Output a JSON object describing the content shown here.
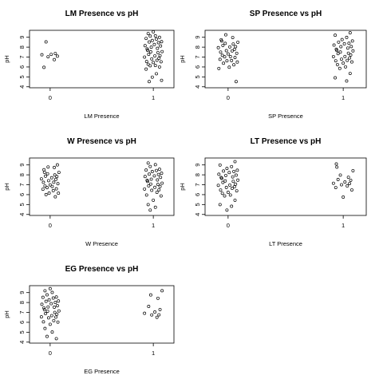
{
  "chart_data": [
    {
      "type": "scatter",
      "title": "LM Presence vs pH",
      "xlabel": "LM Presence",
      "ylabel": "pH",
      "xticks": [
        "0",
        "1"
      ],
      "yticks": [
        "4",
        "5",
        "6",
        "7",
        "8",
        "9"
      ],
      "xlim": [
        -0.2,
        1.2
      ],
      "ylim": [
        3.9,
        9.7
      ],
      "series": [
        {
          "x": 0,
          "y": [
            6.0,
            6.7,
            7.0,
            7.1,
            7.2,
            7.3,
            7.4,
            8.5
          ]
        },
        {
          "x": 1,
          "y": [
            4.5,
            4.7,
            5.0,
            5.3,
            5.8,
            6.0,
            6.1,
            6.2,
            6.3,
            6.4,
            6.5,
            6.6,
            6.7,
            6.8,
            6.9,
            7.0,
            7.1,
            7.2,
            7.3,
            7.4,
            7.5,
            7.6,
            7.7,
            7.8,
            7.9,
            8.0,
            8.1,
            8.2,
            8.3,
            8.4,
            8.5,
            8.6,
            8.7,
            8.8,
            8.9,
            9.0,
            9.1,
            9.2,
            9.4,
            9.5
          ]
        }
      ]
    },
    {
      "type": "scatter",
      "title": "SP Presence vs pH",
      "xlabel": "SP Presence",
      "ylabel": "pH",
      "xticks": [
        "0",
        "1"
      ],
      "yticks": [
        "4",
        "5",
        "6",
        "7",
        "8",
        "9"
      ],
      "xlim": [
        -0.2,
        1.2
      ],
      "ylim": [
        3.9,
        9.7
      ],
      "series": [
        {
          "x": 0,
          "y": [
            4.5,
            5.9,
            6.0,
            6.2,
            6.4,
            6.5,
            6.6,
            6.7,
            6.8,
            6.9,
            7.0,
            7.1,
            7.2,
            7.3,
            7.4,
            7.5,
            7.6,
            7.7,
            7.8,
            7.9,
            8.0,
            8.1,
            8.2,
            8.3,
            8.4,
            8.5,
            8.6,
            8.8,
            9.0,
            9.2
          ]
        },
        {
          "x": 1,
          "y": [
            4.6,
            4.9,
            5.3,
            5.9,
            6.0,
            6.2,
            6.4,
            6.5,
            6.6,
            6.7,
            6.8,
            6.9,
            7.0,
            7.1,
            7.2,
            7.3,
            7.4,
            7.5,
            7.6,
            7.7,
            7.8,
            7.9,
            8.0,
            8.1,
            8.2,
            8.3,
            8.4,
            8.5,
            8.6,
            8.8,
            9.0,
            9.2,
            9.4
          ]
        }
      ]
    },
    {
      "type": "scatter",
      "title": "W Presence vs pH",
      "xlabel": "W Presence",
      "ylabel": "pH",
      "xticks": [
        "0",
        "1"
      ],
      "yticks": [
        "4",
        "5",
        "6",
        "7",
        "8",
        "9"
      ],
      "xlim": [
        -0.2,
        1.2
      ],
      "ylim": [
        3.9,
        9.7
      ],
      "series": [
        {
          "x": 0,
          "y": [
            5.8,
            6.0,
            6.1,
            6.2,
            6.4,
            6.5,
            6.6,
            6.7,
            6.8,
            6.9,
            7.0,
            7.1,
            7.2,
            7.3,
            7.4,
            7.5,
            7.6,
            7.7,
            7.8,
            7.9,
            8.0,
            8.1,
            8.2,
            8.3,
            8.5,
            8.7,
            8.8,
            9.0
          ]
        },
        {
          "x": 1,
          "y": [
            4.4,
            4.7,
            5.0,
            5.4,
            5.9,
            6.0,
            6.2,
            6.4,
            6.5,
            6.6,
            6.7,
            6.8,
            6.9,
            7.0,
            7.1,
            7.2,
            7.3,
            7.4,
            7.5,
            7.6,
            7.7,
            7.8,
            7.9,
            8.0,
            8.1,
            8.2,
            8.3,
            8.4,
            8.5,
            8.6,
            8.8,
            9.0,
            9.2
          ]
        }
      ]
    },
    {
      "type": "scatter",
      "title": "LT Presence vs pH",
      "xlabel": "LT Presence",
      "ylabel": "pH",
      "xticks": [
        "0",
        "1"
      ],
      "yticks": [
        "4",
        "5",
        "6",
        "7",
        "8",
        "9"
      ],
      "xlim": [
        -0.2,
        1.2
      ],
      "ylim": [
        3.9,
        9.7
      ],
      "series": [
        {
          "x": 0,
          "y": [
            4.4,
            4.8,
            5.0,
            5.4,
            5.9,
            6.0,
            6.1,
            6.2,
            6.4,
            6.5,
            6.6,
            6.7,
            6.8,
            6.9,
            7.0,
            7.1,
            7.2,
            7.3,
            7.4,
            7.5,
            7.6,
            7.7,
            7.8,
            7.9,
            8.0,
            8.1,
            8.2,
            8.3,
            8.4,
            8.5,
            8.6,
            8.8,
            9.0,
            9.3
          ]
        },
        {
          "x": 1,
          "y": [
            5.8,
            6.5,
            6.7,
            6.9,
            7.0,
            7.1,
            7.2,
            7.3,
            7.4,
            7.5,
            7.8,
            8.0,
            8.4,
            8.8,
            9.1
          ]
        }
      ]
    },
    {
      "type": "scatter",
      "title": "EG Presence vs pH",
      "xlabel": "EG Presence",
      "ylabel": "pH",
      "xticks": [
        "0",
        "1"
      ],
      "yticks": [
        "4",
        "5",
        "6",
        "7",
        "8",
        "9"
      ],
      "xlim": [
        -0.2,
        1.2
      ],
      "ylim": [
        3.9,
        9.7
      ],
      "series": [
        {
          "x": 0,
          "y": [
            4.4,
            4.6,
            5.0,
            5.4,
            5.8,
            6.0,
            6.1,
            6.2,
            6.4,
            6.5,
            6.6,
            6.7,
            6.8,
            6.9,
            7.0,
            7.1,
            7.2,
            7.3,
            7.4,
            7.5,
            7.6,
            7.7,
            7.8,
            7.9,
            8.0,
            8.1,
            8.2,
            8.3,
            8.4,
            8.5,
            8.6,
            8.8,
            9.0,
            9.2,
            9.4
          ]
        },
        {
          "x": 1,
          "y": [
            6.5,
            6.7,
            6.8,
            6.9,
            7.0,
            7.3,
            7.6,
            8.4,
            8.8,
            9.2
          ]
        }
      ]
    }
  ]
}
